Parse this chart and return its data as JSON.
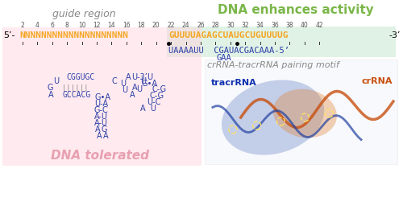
{
  "title": "guide region",
  "title2": "DNA enhances activity",
  "dna_tolerated": "DNA tolerated",
  "pairing_motif": "crRNA-tracrRNA pairing motif",
  "tracr_label": "tracrRNA",
  "cr_label": "crRNA",
  "five_prime_label": "5’ -",
  "three_prime_label": "- 3’",
  "five_prime_label2": "- 5’",
  "guide_seq": "NNNNNNNNNNNNNNNNNNNN",
  "enhance_seq": "GUUUUAGAGCUAUGCUGUUUUG",
  "tick_nums_guide": [
    2,
    4,
    6,
    8,
    10,
    12,
    14,
    16,
    18,
    20
  ],
  "tick_nums_enhance": [
    22,
    24,
    26,
    28,
    30,
    32,
    34,
    36,
    38,
    40,
    42
  ],
  "tracr_seq1": "UAAAAUU  CGAUACGACAAA",
  "tracr_seq2": "GAA",
  "guide_color": "#f5a623",
  "enhance_color": "#f5a623",
  "bg_enhance_color": "#d4edda",
  "bg_dna_tol_color": "#ffd6e0",
  "tracr_color": "#2a3ea8",
  "title2_color": "#7ab648",
  "dna_tol_color": "#e8a0b0",
  "guide_title_color": "#888888",
  "tick_color": "#555555",
  "stem_loop_color": "#2a3ea8"
}
